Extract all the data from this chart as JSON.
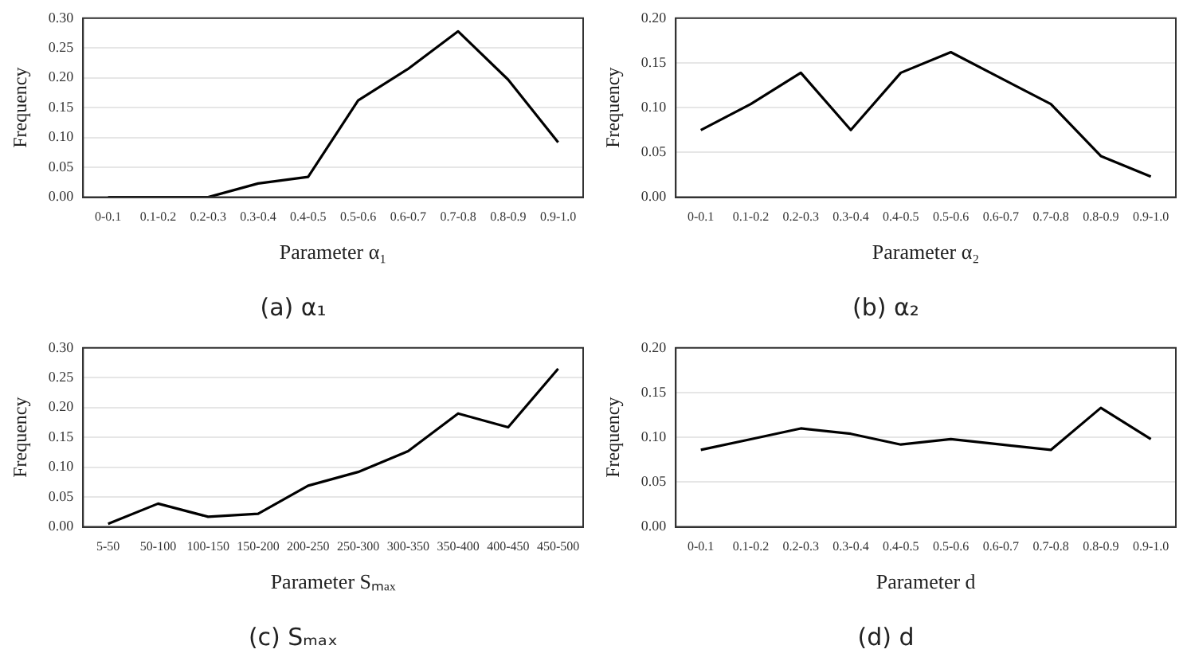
{
  "chart_data": [
    {
      "type": "line",
      "title": "(a) α₁",
      "xlabel": "Parameter α₁",
      "ylabel": "Frequency",
      "categories": [
        "0-0.1",
        "0.1-0.2",
        "0.2-0.3",
        "0.3-0.4",
        "0.4-0.5",
        "0.5-0.6",
        "0.6-0.7",
        "0.7-0.8",
        "0.8-0.9",
        "0.9-1.0"
      ],
      "series": [
        {
          "color": "#000000",
          "values": [
            0,
            0,
            0,
            0.023,
            0.034,
            0.162,
            0.215,
            0.278,
            0.197,
            0.092
          ]
        }
      ],
      "ylim": [
        0,
        0.3
      ],
      "yticks": [
        {
          "value": 0,
          "label": "0.00"
        },
        {
          "value": 0.05,
          "label": "0.05"
        },
        {
          "value": 0.1,
          "label": "0.10"
        },
        {
          "value": 0.15,
          "label": "0.15"
        },
        {
          "value": 0.2,
          "label": "0.20"
        },
        {
          "value": 0.25,
          "label": "0.25"
        },
        {
          "value": 0.3,
          "label": "0.30"
        }
      ],
      "grid": "y",
      "legend": false,
      "marker": "none",
      "line_style": "solid"
    },
    {
      "type": "line",
      "title": "(b) α₂",
      "xlabel": "Parameter α₂",
      "ylabel": "Frequency",
      "categories": [
        "0-0.1",
        "0.1-0.2",
        "0.2-0.3",
        "0.3-0.4",
        "0.4-0.5",
        "0.5-0.6",
        "0.6-0.7",
        "0.7-0.8",
        "0.8-0.9",
        "0.9-1.0"
      ],
      "series": [
        {
          "color": "#000000",
          "values": [
            0.075,
            0.104,
            0.139,
            0.075,
            0.139,
            0.162,
            0.133,
            0.104,
            0.046,
            0.023
          ]
        }
      ],
      "ylim": [
        0,
        0.2
      ],
      "yticks": [
        {
          "value": 0,
          "label": "0.00"
        },
        {
          "value": 0.05,
          "label": "0.05"
        },
        {
          "value": 0.1,
          "label": "0.10"
        },
        {
          "value": 0.15,
          "label": "0.15"
        },
        {
          "value": 0.2,
          "label": "0.20"
        }
      ],
      "grid": "y",
      "legend": false,
      "marker": "none",
      "line_style": "solid"
    },
    {
      "type": "line",
      "title": "(c) Sₘₐₓ",
      "xlabel": "Parameter Sₘₐₓ",
      "ylabel": "Frequency",
      "categories": [
        "5-50",
        "50-100",
        "100-150",
        "150-200",
        "200-250",
        "250-300",
        "300-350",
        "350-400",
        "400-450",
        "450-500"
      ],
      "series": [
        {
          "color": "#000000",
          "values": [
            0.005,
            0.039,
            0.017,
            0.022,
            0.069,
            0.092,
            0.127,
            0.19,
            0.167,
            0.265
          ]
        }
      ],
      "ylim": [
        0,
        0.3
      ],
      "yticks": [
        {
          "value": 0,
          "label": "0.00"
        },
        {
          "value": 0.05,
          "label": "0.05"
        },
        {
          "value": 0.1,
          "label": "0.10"
        },
        {
          "value": 0.15,
          "label": "0.15"
        },
        {
          "value": 0.2,
          "label": "0.20"
        },
        {
          "value": 0.25,
          "label": "0.25"
        },
        {
          "value": 0.3,
          "label": "0.30"
        }
      ],
      "grid": "y",
      "legend": false,
      "marker": "none",
      "line_style": "solid"
    },
    {
      "type": "line",
      "title": "(d) d",
      "xlabel": "Parameter d",
      "ylabel": "Frequency",
      "categories": [
        "0-0.1",
        "0.1-0.2",
        "0.2-0.3",
        "0.3-0.4",
        "0.4-0.5",
        "0.5-0.6",
        "0.6-0.7",
        "0.7-0.8",
        "0.8-0.9",
        "0.9-1.0"
      ],
      "series": [
        {
          "color": "#000000",
          "values": [
            0.086,
            0.098,
            0.11,
            0.104,
            0.092,
            0.098,
            0.092,
            0.086,
            0.133,
            0.098
          ]
        }
      ],
      "ylim": [
        0,
        0.2
      ],
      "yticks": [
        {
          "value": 0,
          "label": "0.00"
        },
        {
          "value": 0.05,
          "label": "0.05"
        },
        {
          "value": 0.1,
          "label": "0.10"
        },
        {
          "value": 0.15,
          "label": "0.15"
        },
        {
          "value": 0.2,
          "label": "0.20"
        }
      ],
      "grid": "y",
      "legend": false,
      "marker": "none",
      "line_style": "solid"
    }
  ]
}
